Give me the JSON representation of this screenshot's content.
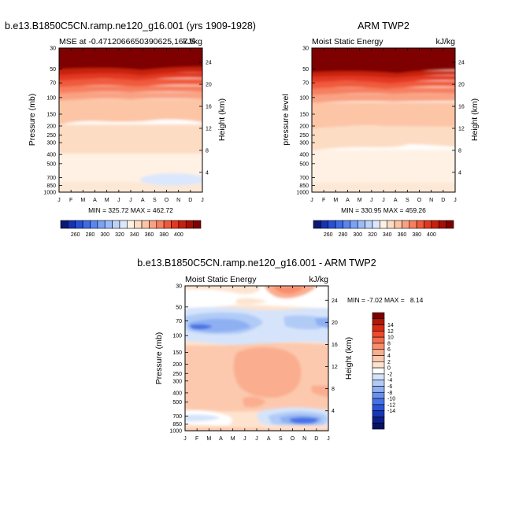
{
  "chart_data": [
    {
      "type": "heatmap",
      "title": "b.e13.B1850C5CN.ramp.ne120_g16.001 (yrs 1909-1928)",
      "subtitle_left": "MSE at -0.4712066650390625,167.5",
      "subtitle_right": "kJ/kg",
      "ylabel": "Pressure (mb)",
      "ylabel_right": "Height (km)",
      "stats": "MIN = 325.72 MAX = 462.72",
      "months": [
        "J",
        "F",
        "M",
        "A",
        "M",
        "J",
        "J",
        "A",
        "S",
        "O",
        "N",
        "D",
        "J"
      ],
      "pressure_ticks": [
        "30",
        "50",
        "70",
        "100",
        "150",
        "200",
        "250",
        "300",
        "400",
        "500",
        "700",
        "850",
        "1000"
      ],
      "height_ticks": [
        "24",
        "20",
        "16",
        "12",
        "8",
        "4"
      ],
      "levels_bottom_to_top": [
        {
          "pressure": 1000,
          "value": 350
        },
        {
          "pressure": 900,
          "value": 345
        },
        {
          "pressure": 700,
          "value": 333
        },
        {
          "pressure": 500,
          "value": 334
        },
        {
          "pressure": 400,
          "value": 337
        },
        {
          "pressure": 300,
          "value": 343
        },
        {
          "pressure": 200,
          "value": 347
        },
        {
          "pressure": 150,
          "value": 352
        },
        {
          "pressure": 100,
          "value": 365
        },
        {
          "pressure": 80,
          "value": 375
        },
        {
          "pressure": 60,
          "value": 390
        },
        {
          "pressure": 40,
          "value": 420
        },
        {
          "pressure": 30,
          "value": 455
        }
      ]
    },
    {
      "type": "heatmap",
      "title": "ARM TWP2",
      "subtitle_left": "Moist Static Energy",
      "subtitle_right": "kJ/kg",
      "ylabel": "pressure level",
      "ylabel_right": "Height (km)",
      "stats": "MIN = 330.95 MAX = 459.26",
      "months": [
        "J",
        "F",
        "M",
        "A",
        "M",
        "J",
        "J",
        "A",
        "S",
        "O",
        "N",
        "D",
        "J"
      ],
      "pressure_ticks": [
        "30",
        "50",
        "70",
        "100",
        "150",
        "200",
        "250",
        "300",
        "400",
        "500",
        "700",
        "850",
        "1000"
      ],
      "height_ticks": [
        "24",
        "20",
        "16",
        "12",
        "8",
        "4"
      ]
    },
    {
      "type": "heatmap",
      "title": "b.e13.B1850C5CN.ramp.ne120_g16.001 - ARM TWP2",
      "subtitle_left": "Moist Static Energy",
      "subtitle_right": "kJ/kg",
      "ylabel": "Pressure (mb)",
      "ylabel_right": "Height (km)",
      "stats": "MIN = -7.02 MAX =   8.14",
      "months": [
        "J",
        "F",
        "M",
        "A",
        "M",
        "J",
        "J",
        "A",
        "S",
        "O",
        "N",
        "D",
        "J"
      ],
      "pressure_ticks": [
        "30",
        "50",
        "70",
        "100",
        "150",
        "200",
        "250",
        "300",
        "400",
        "500",
        "700",
        "850",
        "1000"
      ],
      "height_ticks": [
        "24",
        "20",
        "16",
        "12",
        "8",
        "4"
      ]
    }
  ],
  "colorbar_abs": {
    "labels": [
      "260",
      "280",
      "300",
      "320",
      "340",
      "360",
      "380",
      "400"
    ],
    "colors": [
      "#0a1a73",
      "#1533b3",
      "#2850d6",
      "#3f6be6",
      "#5b86ef",
      "#7aa2f5",
      "#9bbcf8",
      "#bcd3fa",
      "#dbe7fc",
      "#fff2e4",
      "#fddcc4",
      "#fcc5a6",
      "#f9a283",
      "#f67f5f",
      "#f05a3c",
      "#e23820",
      "#c8200e",
      "#a50f07",
      "#7f0000"
    ]
  },
  "colorbar_diff": {
    "labels": [
      "14",
      "12",
      "10",
      "8",
      "6",
      "4",
      "2",
      "0",
      "-2",
      "-4",
      "-6",
      "-8",
      "-10",
      "-12",
      "-14"
    ],
    "colors": [
      "#7f0000",
      "#b01807",
      "#d92a14",
      "#ee4a2f",
      "#f56c4c",
      "#f88e6d",
      "#fbad8f",
      "#fcc9ae",
      "#fee3cf",
      "#ffffff",
      "#d5e4fa",
      "#b1cbf7",
      "#8eb0f2",
      "#6890ec",
      "#4672e5",
      "#2a53d8",
      "#1637b8",
      "#0c208c",
      "#061360"
    ]
  }
}
